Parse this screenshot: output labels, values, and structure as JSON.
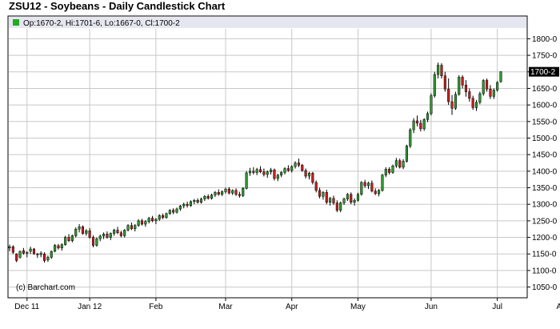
{
  "header": {
    "title": "ZSU12 - Soybeans - Daily Candlestick Chart",
    "legend_text": "Op:1670-2, Hi:1701-6, Lo:1667-0, Cl:1700-2",
    "last_price_label": "1700-2",
    "credit": "(c) Barchart.com"
  },
  "colors": {
    "up": "#2e9a2e",
    "down": "#c81e1e",
    "grid": "#c8c8c8",
    "legend_bg": "#e6e6f0",
    "legend_swatch": "#22aa22"
  },
  "chart_data": {
    "type": "candlestick",
    "title": "ZSU12 - Soybeans - Daily Candlestick Chart",
    "y_axis": {
      "side": "right",
      "min": 1020,
      "max": 1830,
      "ticks": [
        {
          "value": 1050,
          "label": "1050-0"
        },
        {
          "value": 1100,
          "label": "1100-0"
        },
        {
          "value": 1150,
          "label": "1150-0"
        },
        {
          "value": 1200,
          "label": "1200-0"
        },
        {
          "value": 1250,
          "label": "1250-0"
        },
        {
          "value": 1300,
          "label": "1300-0"
        },
        {
          "value": 1350,
          "label": "1350-0"
        },
        {
          "value": 1400,
          "label": "1400-0"
        },
        {
          "value": 1450,
          "label": "1450-0"
        },
        {
          "value": 1500,
          "label": "1500-0"
        },
        {
          "value": 1550,
          "label": "1550-0"
        },
        {
          "value": 1600,
          "label": "1600-0"
        },
        {
          "value": 1650,
          "label": "1650-0"
        },
        {
          "value": 1700,
          "label": "1700-0"
        },
        {
          "value": 1750,
          "label": "1750-0"
        },
        {
          "value": 1800,
          "label": "1800-0"
        }
      ]
    },
    "x_axis": {
      "labels": [
        {
          "label": "Dec 11",
          "index": 5
        },
        {
          "label": "Jan 12",
          "index": 23
        },
        {
          "label": "Feb",
          "index": 42
        },
        {
          "label": "Mar",
          "index": 62
        },
        {
          "label": "Apr",
          "index": 81
        },
        {
          "label": "May",
          "index": 100
        },
        {
          "label": "Jun",
          "index": 121
        },
        {
          "label": "Jul",
          "index": 140
        },
        {
          "label": "Aug",
          "index": 159
        }
      ]
    },
    "grid": true,
    "last_bar": {
      "open": 1670.25,
      "high": 1701.75,
      "low": 1667,
      "close": 1700.25
    },
    "candles": [
      [
        1168,
        1178,
        1158,
        1172
      ],
      [
        1172,
        1176,
        1150,
        1155
      ],
      [
        1150,
        1152,
        1125,
        1130
      ],
      [
        1140,
        1160,
        1136,
        1158
      ],
      [
        1160,
        1168,
        1148,
        1152
      ],
      [
        1152,
        1158,
        1140,
        1155
      ],
      [
        1158,
        1172,
        1150,
        1165
      ],
      [
        1165,
        1168,
        1148,
        1150
      ],
      [
        1150,
        1153,
        1138,
        1148
      ],
      [
        1148,
        1158,
        1140,
        1152
      ],
      [
        1150,
        1155,
        1124,
        1130
      ],
      [
        1132,
        1145,
        1126,
        1140
      ],
      [
        1140,
        1160,
        1135,
        1158
      ],
      [
        1158,
        1180,
        1155,
        1176
      ],
      [
        1175,
        1180,
        1163,
        1168
      ],
      [
        1168,
        1182,
        1160,
        1178
      ],
      [
        1178,
        1205,
        1175,
        1200
      ],
      [
        1200,
        1210,
        1186,
        1190
      ],
      [
        1190,
        1208,
        1185,
        1205
      ],
      [
        1205,
        1230,
        1200,
        1225
      ],
      [
        1225,
        1240,
        1215,
        1232
      ],
      [
        1232,
        1236,
        1208,
        1212
      ],
      [
        1212,
        1225,
        1205,
        1220
      ],
      [
        1220,
        1228,
        1196,
        1200
      ],
      [
        1200,
        1206,
        1170,
        1176
      ],
      [
        1176,
        1200,
        1172,
        1196
      ],
      [
        1196,
        1208,
        1188,
        1204
      ],
      [
        1204,
        1215,
        1195,
        1210
      ],
      [
        1210,
        1218,
        1196,
        1200
      ],
      [
        1200,
        1215,
        1192,
        1212
      ],
      [
        1212,
        1226,
        1205,
        1222
      ],
      [
        1222,
        1232,
        1210,
        1214
      ],
      [
        1214,
        1220,
        1200,
        1205
      ],
      [
        1205,
        1225,
        1200,
        1222
      ],
      [
        1222,
        1240,
        1218,
        1236
      ],
      [
        1236,
        1245,
        1222,
        1226
      ],
      [
        1226,
        1240,
        1218,
        1236
      ],
      [
        1236,
        1255,
        1232,
        1250
      ],
      [
        1250,
        1256,
        1236,
        1240
      ],
      [
        1240,
        1252,
        1232,
        1248
      ],
      [
        1248,
        1262,
        1242,
        1258
      ],
      [
        1258,
        1265,
        1246,
        1250
      ],
      [
        1250,
        1258,
        1240,
        1255
      ],
      [
        1255,
        1270,
        1250,
        1266
      ],
      [
        1266,
        1272,
        1255,
        1260
      ],
      [
        1260,
        1275,
        1256,
        1272
      ],
      [
        1272,
        1285,
        1268,
        1282
      ],
      [
        1282,
        1288,
        1270,
        1276
      ],
      [
        1276,
        1290,
        1272,
        1286
      ],
      [
        1286,
        1298,
        1280,
        1295
      ],
      [
        1295,
        1305,
        1288,
        1300
      ],
      [
        1300,
        1308,
        1290,
        1296
      ],
      [
        1296,
        1312,
        1292,
        1308
      ],
      [
        1308,
        1316,
        1300,
        1312
      ],
      [
        1312,
        1318,
        1302,
        1306
      ],
      [
        1306,
        1320,
        1302,
        1316
      ],
      [
        1316,
        1328,
        1310,
        1324
      ],
      [
        1324,
        1330,
        1314,
        1318
      ],
      [
        1318,
        1332,
        1314,
        1328
      ],
      [
        1328,
        1340,
        1322,
        1336
      ],
      [
        1336,
        1345,
        1326,
        1330
      ],
      [
        1330,
        1342,
        1325,
        1338
      ],
      [
        1338,
        1350,
        1332,
        1346
      ],
      [
        1346,
        1352,
        1330,
        1334
      ],
      [
        1334,
        1345,
        1328,
        1342
      ],
      [
        1342,
        1348,
        1325,
        1330
      ],
      [
        1330,
        1338,
        1320,
        1326
      ],
      [
        1326,
        1352,
        1322,
        1348
      ],
      [
        1348,
        1400,
        1345,
        1395
      ],
      [
        1395,
        1410,
        1386,
        1400
      ],
      [
        1400,
        1412,
        1390,
        1396
      ],
      [
        1396,
        1410,
        1388,
        1405
      ],
      [
        1405,
        1415,
        1394,
        1398
      ],
      [
        1398,
        1408,
        1384,
        1390
      ],
      [
        1390,
        1402,
        1380,
        1398
      ],
      [
        1398,
        1410,
        1390,
        1404
      ],
      [
        1404,
        1408,
        1372,
        1378
      ],
      [
        1378,
        1392,
        1370,
        1388
      ],
      [
        1388,
        1400,
        1382,
        1396
      ],
      [
        1396,
        1412,
        1390,
        1408
      ],
      [
        1408,
        1418,
        1398,
        1402
      ],
      [
        1402,
        1418,
        1396,
        1414
      ],
      [
        1414,
        1430,
        1408,
        1425
      ],
      [
        1425,
        1438,
        1412,
        1418
      ],
      [
        1418,
        1422,
        1398,
        1402
      ],
      [
        1402,
        1408,
        1378,
        1385
      ],
      [
        1385,
        1398,
        1375,
        1394
      ],
      [
        1394,
        1398,
        1360,
        1366
      ],
      [
        1366,
        1372,
        1336,
        1342
      ],
      [
        1342,
        1350,
        1318,
        1324
      ],
      [
        1324,
        1340,
        1314,
        1336
      ],
      [
        1336,
        1344,
        1300,
        1306
      ],
      [
        1306,
        1322,
        1296,
        1318
      ],
      [
        1318,
        1326,
        1298,
        1304
      ],
      [
        1304,
        1312,
        1276,
        1282
      ],
      [
        1282,
        1308,
        1276,
        1304
      ],
      [
        1304,
        1320,
        1298,
        1316
      ],
      [
        1316,
        1334,
        1310,
        1330
      ],
      [
        1330,
        1336,
        1300,
        1306
      ],
      [
        1306,
        1318,
        1296,
        1312
      ],
      [
        1312,
        1335,
        1308,
        1330
      ],
      [
        1330,
        1370,
        1326,
        1366
      ],
      [
        1366,
        1374,
        1350,
        1356
      ],
      [
        1356,
        1368,
        1346,
        1364
      ],
      [
        1364,
        1372,
        1336,
        1340
      ],
      [
        1340,
        1348,
        1328,
        1332
      ],
      [
        1332,
        1346,
        1324,
        1342
      ],
      [
        1342,
        1392,
        1338,
        1388
      ],
      [
        1388,
        1412,
        1382,
        1406
      ],
      [
        1406,
        1412,
        1390,
        1396
      ],
      [
        1396,
        1420,
        1392,
        1416
      ],
      [
        1416,
        1440,
        1410,
        1432
      ],
      [
        1432,
        1438,
        1408,
        1412
      ],
      [
        1412,
        1436,
        1406,
        1430
      ],
      [
        1430,
        1480,
        1426,
        1476
      ],
      [
        1476,
        1530,
        1470,
        1525
      ],
      [
        1525,
        1560,
        1515,
        1552
      ],
      [
        1552,
        1568,
        1535,
        1545
      ],
      [
        1545,
        1555,
        1520,
        1528
      ],
      [
        1528,
        1560,
        1522,
        1556
      ],
      [
        1556,
        1580,
        1548,
        1574
      ],
      [
        1574,
        1635,
        1568,
        1628
      ],
      [
        1628,
        1700,
        1622,
        1692
      ],
      [
        1692,
        1728,
        1680,
        1720
      ],
      [
        1720,
        1726,
        1680,
        1688
      ],
      [
        1688,
        1700,
        1640,
        1648
      ],
      [
        1648,
        1680,
        1600,
        1610
      ],
      [
        1610,
        1630,
        1570,
        1590
      ],
      [
        1590,
        1640,
        1585,
        1632
      ],
      [
        1632,
        1690,
        1628,
        1684
      ],
      [
        1684,
        1690,
        1650,
        1660
      ],
      [
        1660,
        1675,
        1625,
        1640
      ],
      [
        1640,
        1650,
        1610,
        1620
      ],
      [
        1620,
        1628,
        1585,
        1592
      ],
      [
        1592,
        1615,
        1582,
        1608
      ],
      [
        1608,
        1640,
        1602,
        1634
      ],
      [
        1634,
        1678,
        1628,
        1674
      ],
      [
        1674,
        1680,
        1640,
        1648
      ],
      [
        1648,
        1660,
        1618,
        1626
      ],
      [
        1626,
        1650,
        1618,
        1645
      ],
      [
        1645,
        1672,
        1640,
        1668
      ],
      [
        1670.25,
        1701.75,
        1667,
        1700.25
      ]
    ]
  }
}
